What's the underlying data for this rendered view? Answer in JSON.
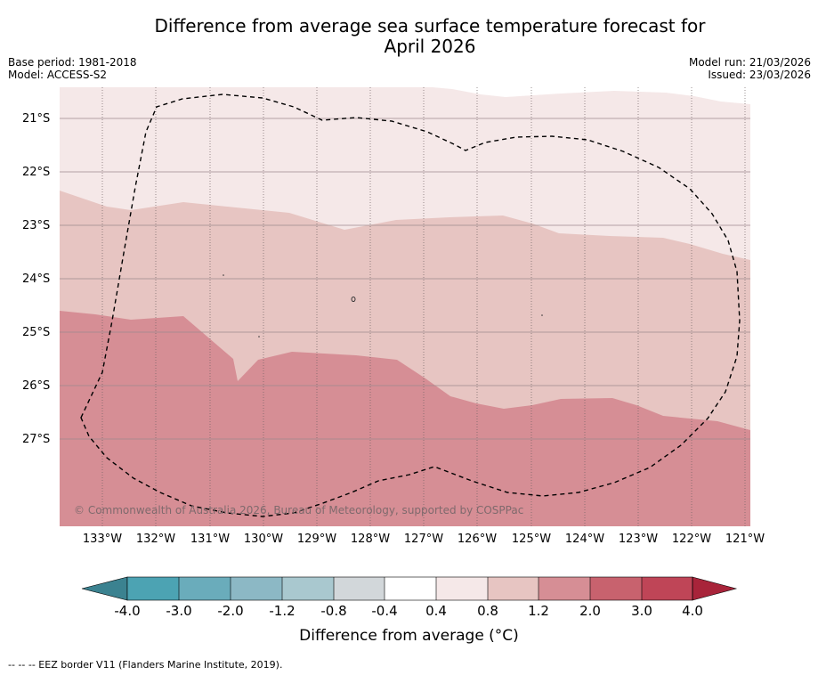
{
  "title": "Difference from average sea surface temperature forecast for",
  "title_line2": "April 2026",
  "base_period": "Base period: 1981-2018",
  "model": "Model: ACCESS-S2",
  "model_run": "Model run: 21/03/2026",
  "issued": "Issued: 23/03/2026",
  "copyright": "© Commonwealth of Australia 2026, Bureau of Meteorology, supported by COSPPac",
  "lat_labels": [
    "21°S",
    "22°S",
    "23°S",
    "24°S",
    "25°S",
    "26°S",
    "27°S"
  ],
  "lon_labels": [
    "133°W",
    "132°W",
    "131°W",
    "130°W",
    "129°W",
    "128°W",
    "127°W",
    "126°W",
    "125°W",
    "124°W",
    "123°W",
    "122°W",
    "121°W"
  ],
  "colorbar": {
    "ticks": [
      "-4.0",
      "-3.0",
      "-2.0",
      "-1.2",
      "-0.8",
      "-0.4",
      "0.4",
      "0.8",
      "1.2",
      "2.0",
      "3.0",
      "4.0"
    ],
    "colors": [
      "#4ca3b3",
      "#6aacbb",
      "#8cb8c5",
      "#a9c8cf",
      "#d2d7da",
      "#ffffff",
      "#f5e8e8",
      "#e7c5c2",
      "#d68e95",
      "#c8626e",
      "#bf4557"
    ],
    "under_color": "#3b8290",
    "over_color": "#a8243a",
    "label": "Difference from average (°C)"
  },
  "footer": "-- -- -- EEZ border V11 (Flanders Marine Institute, 2019).",
  "chart_data": {
    "type": "map",
    "variable": "sea surface temperature anomaly",
    "units": "°C",
    "lon_range": [
      -133.8,
      -120.9
    ],
    "lat_range": [
      -28.6,
      -20.4
    ],
    "bands_present": [
      "0.4 to 0.8",
      "0.8 to 1.2",
      "1.2 to 2.0"
    ],
    "anomaly_pattern": "0.4–0.8 north of ~23°S, 0.8–1.2 in central belt, 1.2–2.0 south of ~25–26°S"
  }
}
